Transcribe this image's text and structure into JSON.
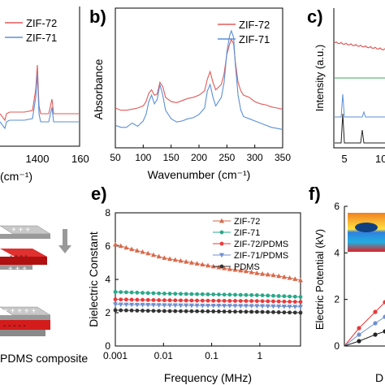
{
  "panels": {
    "b": "b)",
    "c": "c)",
    "e": "e)",
    "f": "f)"
  },
  "colors": {
    "zif72": "#e0474c",
    "zif71": "#5b8fd6",
    "zif72_pdms": "#e83a3a",
    "zif71_pdms": "#6f8fcf",
    "pdms": "#333333",
    "ir_zif72": "#e05a5a",
    "ir_zif71": "#5b8fd6"
  },
  "fragments": {
    "a_axis_label": "(cm⁻¹)",
    "a_tick_1400": "1400",
    "a_tick_160": "160",
    "bottom_left_text": "PDMS composite",
    "c_ylabel": "Intensity (a.u.)",
    "c_tick_5": "5",
    "c_tick_10": "10",
    "f_ylabel": "Electric Potential (kV)",
    "f_xlabel_fragment": "D",
    "f_ticks_y": [
      "0",
      "2",
      "4",
      "6"
    ]
  },
  "chart_data": [
    {
      "id": "a",
      "type": "line",
      "title": "",
      "xlabel": "(cm⁻¹)",
      "ylabel": "",
      "legend": [
        {
          "name": "ZIF-72",
          "color": "#e05a5a"
        },
        {
          "name": "ZIF-71",
          "color": "#5b8fd6"
        }
      ],
      "xticks": [
        "1400",
        "160"
      ]
    },
    {
      "id": "b",
      "type": "line",
      "title": "",
      "xlabel": "Wavenumber (cm⁻¹)",
      "ylabel": "Absorbance",
      "xlim": [
        50,
        350
      ],
      "xticks": [
        50,
        100,
        150,
        200,
        250,
        300,
        350
      ],
      "legend_position": "top-right",
      "series": [
        {
          "name": "ZIF-72",
          "color": "#e05a5a",
          "x": [
            50,
            60,
            70,
            80,
            90,
            100,
            105,
            110,
            115,
            120,
            125,
            130,
            135,
            140,
            150,
            160,
            170,
            180,
            190,
            200,
            210,
            215,
            220,
            225,
            230,
            240,
            245,
            250,
            255,
            258,
            262,
            265,
            270,
            275,
            280,
            290,
            300,
            310,
            320,
            330,
            340,
            350
          ],
          "y": [
            0.28,
            0.26,
            0.26,
            0.27,
            0.28,
            0.3,
            0.34,
            0.42,
            0.45,
            0.4,
            0.41,
            0.52,
            0.48,
            0.38,
            0.34,
            0.33,
            0.35,
            0.37,
            0.38,
            0.4,
            0.44,
            0.55,
            0.62,
            0.52,
            0.45,
            0.5,
            0.6,
            0.78,
            0.88,
            0.92,
            0.88,
            0.72,
            0.52,
            0.44,
            0.4,
            0.38,
            0.34,
            0.32,
            0.31,
            0.29,
            0.28,
            0.27
          ]
        },
        {
          "name": "ZIF-71",
          "color": "#5b8fd6",
          "x": [
            50,
            60,
            70,
            80,
            90,
            100,
            105,
            110,
            115,
            120,
            125,
            130,
            135,
            140,
            150,
            160,
            170,
            180,
            190,
            200,
            210,
            215,
            220,
            225,
            230,
            240,
            245,
            250,
            255,
            258,
            262,
            265,
            270,
            275,
            280,
            290,
            300,
            310,
            320,
            330,
            340,
            350
          ],
          "y": [
            0.12,
            0.1,
            0.1,
            0.14,
            0.11,
            0.16,
            0.22,
            0.34,
            0.4,
            0.32,
            0.36,
            0.5,
            0.4,
            0.26,
            0.18,
            0.15,
            0.16,
            0.18,
            0.19,
            0.22,
            0.28,
            0.44,
            0.5,
            0.38,
            0.3,
            0.38,
            0.52,
            0.8,
            0.96,
            1.0,
            0.94,
            0.7,
            0.4,
            0.26,
            0.2,
            0.18,
            0.16,
            0.14,
            0.12,
            0.1,
            0.09,
            0.08
          ]
        }
      ]
    },
    {
      "id": "c",
      "type": "line",
      "title": "",
      "xlabel": "",
      "ylabel": "Intensity (a.u.)",
      "xticks": [
        "5",
        "10"
      ]
    },
    {
      "id": "e",
      "type": "line",
      "title": "",
      "xlabel": "Frequency (MHz)",
      "ylabel": "Dielectric Constant",
      "xscale": "log",
      "xlim": [
        0.001,
        7
      ],
      "ylim": [
        0,
        8
      ],
      "xticks": [
        "0.001",
        "0.01",
        "0.1",
        "1"
      ],
      "yticks": [
        0,
        2,
        4,
        6,
        8
      ],
      "legend_position": "center-right",
      "series": [
        {
          "name": "ZIF-72",
          "color": "#d9694a",
          "marker": "triangle",
          "x": [
            0.001,
            0.002,
            0.005,
            0.01,
            0.02,
            0.05,
            0.1,
            0.2,
            0.5,
            1,
            2,
            5,
            7
          ],
          "y": [
            6.1,
            5.85,
            5.55,
            5.3,
            5.15,
            4.95,
            4.8,
            4.65,
            4.5,
            4.35,
            4.25,
            4.05,
            3.95
          ]
        },
        {
          "name": "ZIF-71",
          "color": "#2aa88a",
          "marker": "circle",
          "x": [
            0.001,
            0.01,
            0.1,
            1,
            7
          ],
          "y": [
            3.25,
            3.15,
            3.1,
            3.05,
            2.95
          ]
        },
        {
          "name": "ZIF-72/PDMS",
          "color": "#e83a3a",
          "marker": "circle",
          "x": [
            0.001,
            0.01,
            0.1,
            1,
            7
          ],
          "y": [
            2.8,
            2.75,
            2.72,
            2.7,
            2.65
          ]
        },
        {
          "name": "ZIF-71/PDMS",
          "color": "#6f8fcf",
          "marker": "triangle-down",
          "x": [
            0.001,
            0.01,
            0.1,
            1,
            7
          ],
          "y": [
            2.5,
            2.45,
            2.42,
            2.4,
            2.35
          ]
        },
        {
          "name": "PDMS",
          "color": "#333333",
          "marker": "circle",
          "x": [
            0.001,
            0.01,
            0.1,
            1,
            7
          ],
          "y": [
            2.15,
            2.1,
            2.08,
            2.05,
            2.0
          ]
        }
      ]
    },
    {
      "id": "f",
      "type": "line",
      "title": "",
      "xlabel": "D",
      "ylabel": "Electric Potential (kV)",
      "ylim": [
        0,
        6
      ],
      "yticks": [
        0,
        2,
        4,
        6
      ]
    }
  ]
}
